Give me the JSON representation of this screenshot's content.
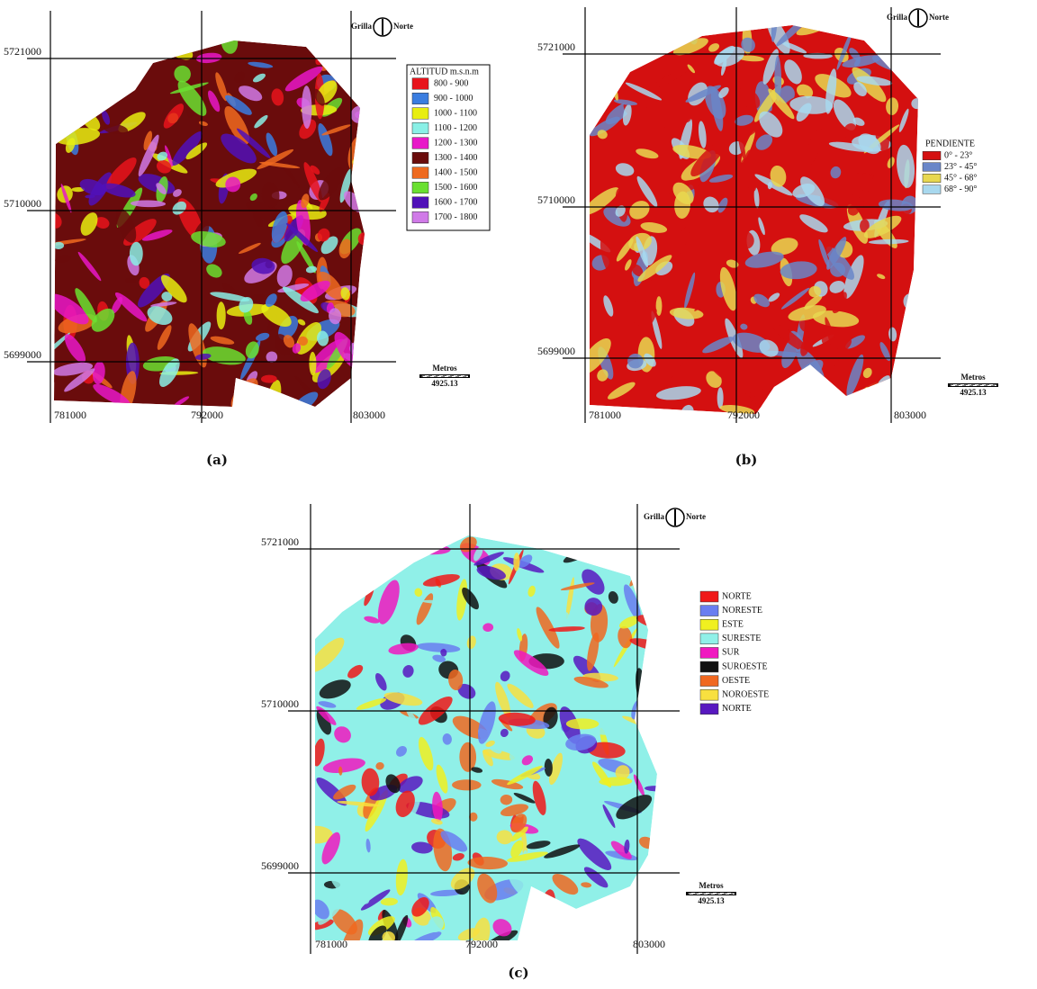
{
  "panels": [
    {
      "caption": "(a)",
      "yticks": [
        5721000,
        5710000,
        5699000
      ],
      "xticks": [
        781000,
        792000,
        803000
      ],
      "compass": [
        "Grilla",
        "Norte"
      ],
      "scale": {
        "unit": "Metros",
        "value": "4925.13"
      },
      "legend": {
        "title": "ALTITUD m.s.n.m",
        "items": [
          {
            "label": "800 -  900",
            "color": "#e8141c"
          },
          {
            "label": "900 - 1000",
            "color": "#3a7de0"
          },
          {
            "label": "1000 - 1100",
            "color": "#e8ee10"
          },
          {
            "label": "1100 - 1200",
            "color": "#8af0e6"
          },
          {
            "label": "1200 - 1300",
            "color": "#e818c8"
          },
          {
            "label": "1300 - 1400",
            "color": "#6a0c0c"
          },
          {
            "label": "1400 - 1500",
            "color": "#ee6a20"
          },
          {
            "label": "1500 - 1600",
            "color": "#6ae030"
          },
          {
            "label": "1600 - 1700",
            "color": "#5010b8"
          },
          {
            "label": "1700 - 1800",
            "color": "#d07ae8"
          }
        ]
      }
    },
    {
      "caption": "(b)",
      "yticks": [
        5721000,
        5710000,
        5699000
      ],
      "xticks": [
        781000,
        792000,
        803000
      ],
      "compass": [
        "Grilla",
        "Norte"
      ],
      "scale": {
        "unit": "Metros",
        "value": "4925.13"
      },
      "legend": {
        "title": "PENDIENTE",
        "items": [
          {
            "label": "0° - 23°",
            "color": "#d41010"
          },
          {
            "label": "23° - 45°",
            "color": "#6a86c8"
          },
          {
            "label": "45° - 68°",
            "color": "#e8d850"
          },
          {
            "label": "68° - 90°",
            "color": "#a8d8ee"
          }
        ]
      }
    },
    {
      "caption": "(c)",
      "yticks": [
        5721000,
        5710000,
        5699000
      ],
      "xticks": [
        781000,
        792000,
        803000
      ],
      "compass": [
        "Grilla",
        "Norte"
      ],
      "scale": {
        "unit": "Metros",
        "value": "4925.13"
      },
      "legend": {
        "items": [
          {
            "label": "NORTE",
            "color": "#f01818"
          },
          {
            "label": "NORESTE",
            "color": "#6a7ef0"
          },
          {
            "label": "ESTE",
            "color": "#f0f020"
          },
          {
            "label": "SURESTE",
            "color": "#90f0e8"
          },
          {
            "label": "SUR",
            "color": "#f018c0"
          },
          {
            "label": "SUROESTE",
            "color": "#101010"
          },
          {
            "label": "OESTE",
            "color": "#f06820"
          },
          {
            "label": "NOROESTE",
            "color": "#f8e040"
          },
          {
            "label": "NORTE",
            "color": "#5818c0"
          }
        ]
      }
    }
  ]
}
